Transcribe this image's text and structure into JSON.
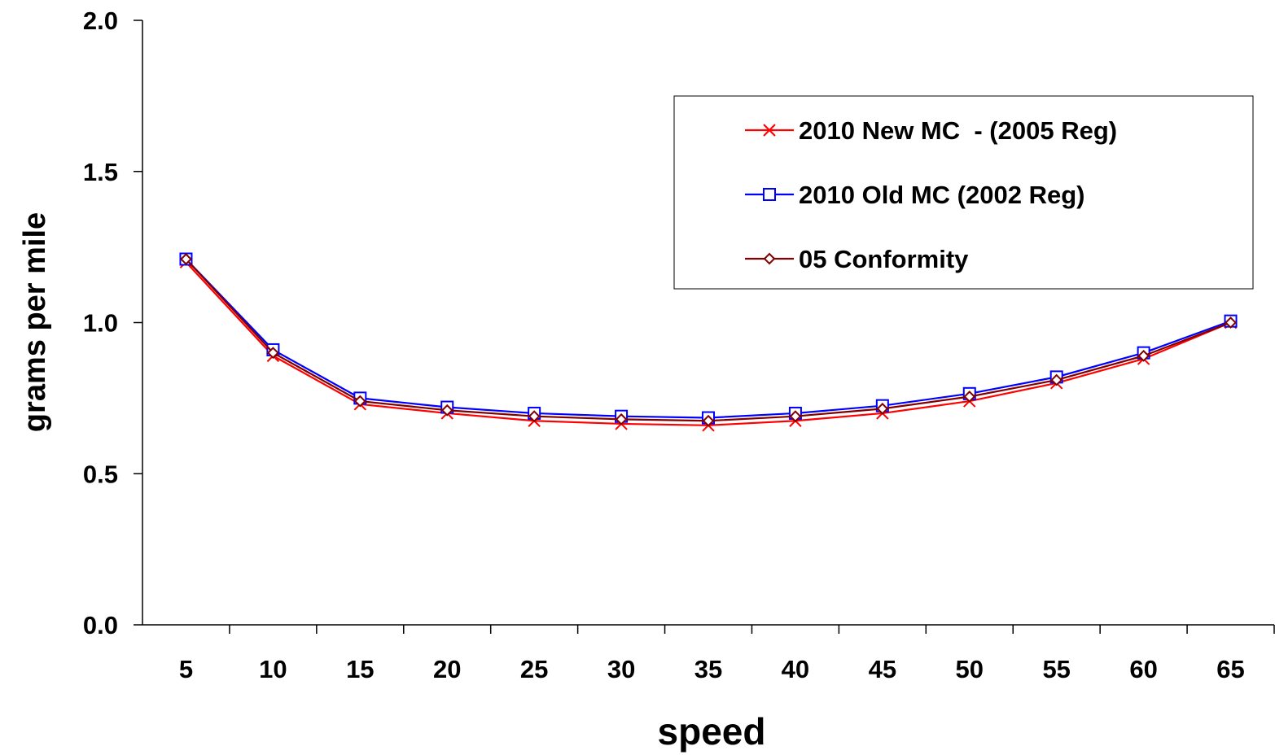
{
  "chart_data": {
    "type": "line",
    "title": "",
    "xlabel": "speed",
    "ylabel": "grams per mile",
    "categories": [
      "5",
      "10",
      "15",
      "20",
      "25",
      "30",
      "35",
      "40",
      "45",
      "50",
      "55",
      "60",
      "65"
    ],
    "y_ticks": [
      "0.0",
      "0.5",
      "1.0",
      "1.5",
      "2.0"
    ],
    "ylim": [
      0,
      2
    ],
    "grid": false,
    "legend_position": "top-right",
    "series": [
      {
        "name": "2010 New MC  - (2005 Reg)",
        "color": "#ff0000",
        "marker": "x",
        "values": [
          1.2,
          0.89,
          0.73,
          0.7,
          0.675,
          0.665,
          0.66,
          0.675,
          0.7,
          0.74,
          0.8,
          0.88,
          1.0
        ]
      },
      {
        "name": "2010 Old MC (2002 Reg)",
        "color": "#0000ff",
        "marker": "square",
        "values": [
          1.21,
          0.91,
          0.75,
          0.72,
          0.7,
          0.69,
          0.685,
          0.7,
          0.725,
          0.765,
          0.82,
          0.9,
          1.005
        ]
      },
      {
        "name": "05 Conformity",
        "color": "#800000",
        "marker": "diamond",
        "values": [
          1.21,
          0.9,
          0.74,
          0.71,
          0.69,
          0.68,
          0.675,
          0.69,
          0.715,
          0.755,
          0.81,
          0.89,
          1.0
        ]
      }
    ]
  }
}
